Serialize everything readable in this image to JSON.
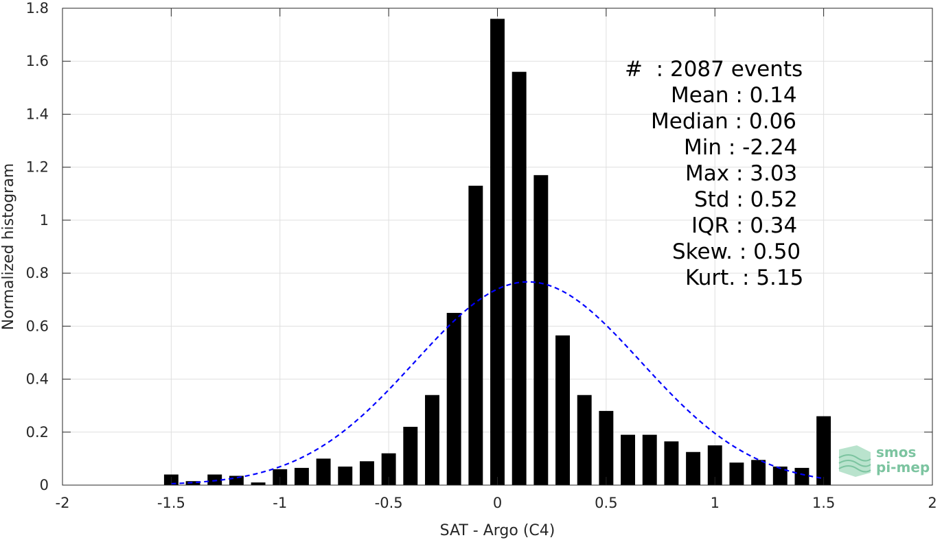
{
  "chart_data": {
    "type": "bar",
    "xlabel": "SAT - Argo (C4)",
    "ylabel": "Normalized histogram",
    "xlim": [
      -2,
      2
    ],
    "ylim": [
      0,
      1.8
    ],
    "x_ticks": [
      "-2",
      "-1.5",
      "-1",
      "-0.5",
      "0",
      "0.5",
      "1",
      "1.5",
      "2"
    ],
    "y_ticks": [
      "0",
      "0.2",
      "0.4",
      "0.6",
      "0.8",
      "1",
      "1.2",
      "1.4",
      "1.6",
      "1.8"
    ],
    "grid": true,
    "bins": [
      -1.5,
      -1.4,
      -1.3,
      -1.2,
      -1.1,
      -1.0,
      -0.9,
      -0.8,
      -0.7,
      -0.6,
      -0.5,
      -0.4,
      -0.3,
      -0.2,
      -0.1,
      0.0,
      0.1,
      0.2,
      0.3,
      0.4,
      0.5,
      0.6,
      0.7,
      0.8,
      0.9,
      1.0,
      1.1,
      1.2,
      1.3,
      1.4,
      1.5
    ],
    "values": [
      0.04,
      0.015,
      0.04,
      0.035,
      0.01,
      0.06,
      0.065,
      0.1,
      0.07,
      0.09,
      0.12,
      0.22,
      0.34,
      0.65,
      1.13,
      1.76,
      1.56,
      1.17,
      0.565,
      0.34,
      0.28,
      0.19,
      0.19,
      0.165,
      0.125,
      0.15,
      0.085,
      0.095,
      0.07,
      0.065,
      0.26
    ],
    "fit": {
      "type": "normal",
      "mean": 0.14,
      "std": 0.52,
      "x_range": [
        -1.5,
        1.5
      ],
      "color": "#0000ff",
      "style": "dashed"
    },
    "bar_color": "#000000"
  },
  "stats": [
    "#  : 2087 events",
    "Mean : 0.14",
    "Median : 0.06",
    "Min : -2.24",
    "Max : 3.03",
    "Std : 0.52",
    "IQR : 0.34",
    "Skew. : 0.50",
    "Kurt. : 5.15"
  ],
  "logo": {
    "line1": "smos",
    "line2": "pi-mep",
    "color": "#7cc4a0"
  }
}
